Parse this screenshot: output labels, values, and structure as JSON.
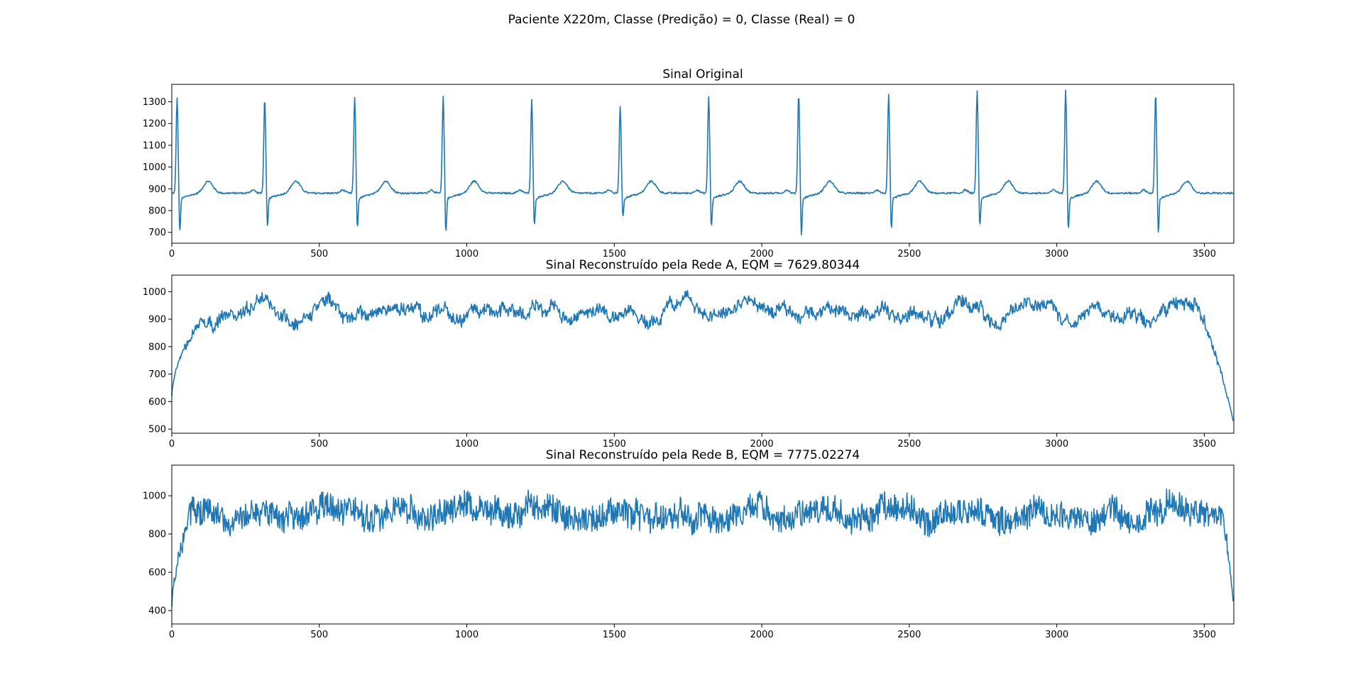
{
  "figure": {
    "suptitle": "Paciente X220m, Classe (Predição) = 0, Classe (Real) = 0",
    "line_color": "#1f77b4"
  },
  "chart_data": [
    {
      "type": "line",
      "title": "Sinal Original",
      "xlim": [
        0,
        3600
      ],
      "ylim": [
        650,
        1380
      ],
      "xticks": [
        0,
        500,
        1000,
        1500,
        2000,
        2500,
        3000,
        3500
      ],
      "yticks": [
        700,
        800,
        900,
        1000,
        1100,
        1200,
        1300
      ],
      "signal": {
        "kind": "ecg",
        "baseline": 880,
        "r_peaks": [
          18,
          315,
          620,
          920,
          1220,
          1520,
          1820,
          2125,
          2430,
          2730,
          3030,
          3335
        ],
        "r_heights": [
          1315,
          1318,
          1316,
          1322,
          1308,
          1275,
          1325,
          1338,
          1333,
          1350,
          1350,
          1338
        ],
        "s_depths": [
          690,
          720,
          708,
          688,
          718,
          765,
          712,
          682,
          700,
          715,
          702,
          690
        ],
        "t_wave_height": 55
      }
    },
    {
      "type": "line",
      "title": "Sinal Reconstruído pela Rede A, EQM = 7629.80344",
      "xlim": [
        0,
        3600
      ],
      "ylim": [
        485,
        1060
      ],
      "xticks": [
        0,
        500,
        1000,
        1500,
        2000,
        2500,
        3000,
        3500
      ],
      "yticks": [
        500,
        600,
        700,
        800,
        900,
        1000
      ],
      "signal": {
        "kind": "noisy",
        "baseline": 930,
        "fluctuation": 45,
        "noise": 18,
        "start_value": 620,
        "ramp_end_x": 120,
        "end_value": 520,
        "drop_start_x": 3500
      }
    },
    {
      "type": "line",
      "title": "Sinal Reconstruído pela Rede B, EQM = 7775.02274",
      "xlim": [
        0,
        3600
      ],
      "ylim": [
        330,
        1160
      ],
      "xticks": [
        0,
        500,
        1000,
        1500,
        2000,
        2500,
        3000,
        3500
      ],
      "yticks": [
        400,
        600,
        800,
        1000
      ],
      "signal": {
        "kind": "noisy",
        "baseline": 910,
        "fluctuation": 55,
        "noise": 70,
        "start_value": 420,
        "ramp_end_x": 70,
        "end_value": 420,
        "drop_start_x": 3560
      }
    }
  ]
}
